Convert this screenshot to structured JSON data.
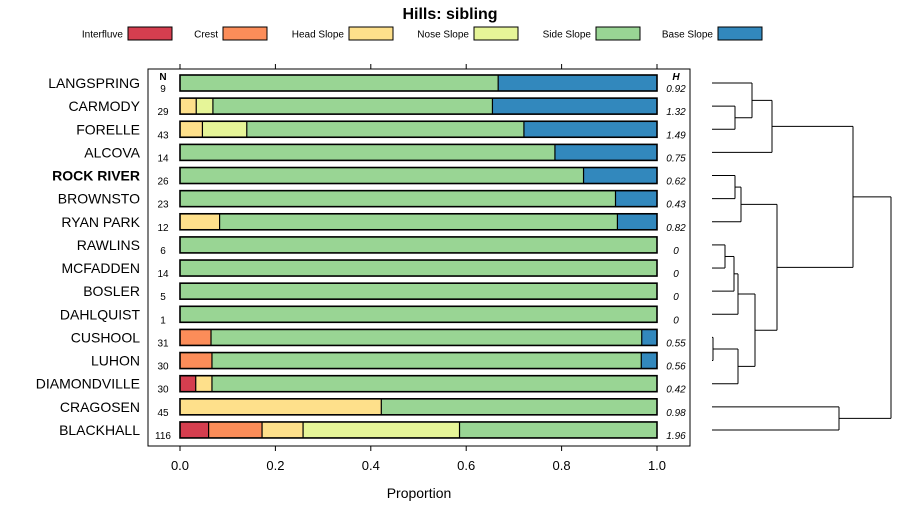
{
  "chart_data": {
    "type": "bar",
    "stacked": true,
    "orientation": "horizontal",
    "title": "Hills: sibling",
    "xlabel": "Proportion",
    "xlim": [
      0,
      1
    ],
    "xticks": [
      "0.0",
      "0.2",
      "0.4",
      "0.6",
      "0.8",
      "1.0"
    ],
    "xtick_values": [
      0,
      0.2,
      0.4,
      0.6,
      0.8,
      1.0
    ],
    "n_header": "N",
    "h_header": "H",
    "legend_position": "top",
    "highlight": "ROCK RIVER",
    "series": [
      {
        "name": "Interfluve",
        "color": "#D53E4F"
      },
      {
        "name": "Crest",
        "color": "#FC8D59"
      },
      {
        "name": "Head Slope",
        "color": "#FEE08B"
      },
      {
        "name": "Nose Slope",
        "color": "#E6F598"
      },
      {
        "name": "Side Slope",
        "color": "#99D594"
      },
      {
        "name": "Base Slope",
        "color": "#3288BD"
      }
    ],
    "rows": [
      {
        "label": "LANGSPRING",
        "n": "9",
        "h": "0.92",
        "values": [
          0,
          0,
          0,
          0,
          0.667,
          0.333
        ]
      },
      {
        "label": "CARMODY",
        "n": "29",
        "h": "1.32",
        "values": [
          0,
          0,
          0.034,
          0.035,
          0.586,
          0.345
        ]
      },
      {
        "label": "FORELLE",
        "n": "43",
        "h": "1.49",
        "values": [
          0,
          0,
          0.047,
          0.093,
          0.581,
          0.279
        ]
      },
      {
        "label": "ALCOVA",
        "n": "14",
        "h": "0.75",
        "values": [
          0,
          0,
          0,
          0,
          0.786,
          0.214
        ]
      },
      {
        "label": "ROCK RIVER",
        "n": "26",
        "h": "0.62",
        "values": [
          0,
          0,
          0,
          0,
          0.846,
          0.154
        ]
      },
      {
        "label": "BROWNSTO",
        "n": "23",
        "h": "0.43",
        "values": [
          0,
          0,
          0,
          0,
          0.913,
          0.087
        ]
      },
      {
        "label": "RYAN PARK",
        "n": "12",
        "h": "0.82",
        "values": [
          0,
          0,
          0.083,
          0,
          0.834,
          0.083
        ]
      },
      {
        "label": "RAWLINS",
        "n": "6",
        "h": "0",
        "values": [
          0,
          0,
          0,
          0,
          1.0,
          0
        ]
      },
      {
        "label": "MCFADDEN",
        "n": "14",
        "h": "0",
        "values": [
          0,
          0,
          0,
          0,
          1.0,
          0
        ]
      },
      {
        "label": "BOSLER",
        "n": "5",
        "h": "0",
        "values": [
          0,
          0,
          0,
          0,
          1.0,
          0
        ]
      },
      {
        "label": "DAHLQUIST",
        "n": "1",
        "h": "0",
        "values": [
          0,
          0,
          0,
          0,
          1.0,
          0
        ]
      },
      {
        "label": "CUSHOOL",
        "n": "31",
        "h": "0.55",
        "values": [
          0,
          0.065,
          0,
          0,
          0.903,
          0.032
        ]
      },
      {
        "label": "LUHON",
        "n": "30",
        "h": "0.56",
        "values": [
          0,
          0.067,
          0,
          0,
          0.9,
          0.033
        ]
      },
      {
        "label": "DIAMONDVILLE",
        "n": "30",
        "h": "0.42",
        "values": [
          0.033,
          0,
          0.034,
          0,
          0.933,
          0
        ]
      },
      {
        "label": "CRAGOSEN",
        "n": "45",
        "h": "0.98",
        "values": [
          0,
          0,
          0.422,
          0,
          0.578,
          0
        ]
      },
      {
        "label": "BLACKHALL",
        "n": "116",
        "h": "1.96",
        "values": [
          0.06,
          0.112,
          0.086,
          0.328,
          0.414,
          0
        ]
      }
    ]
  }
}
